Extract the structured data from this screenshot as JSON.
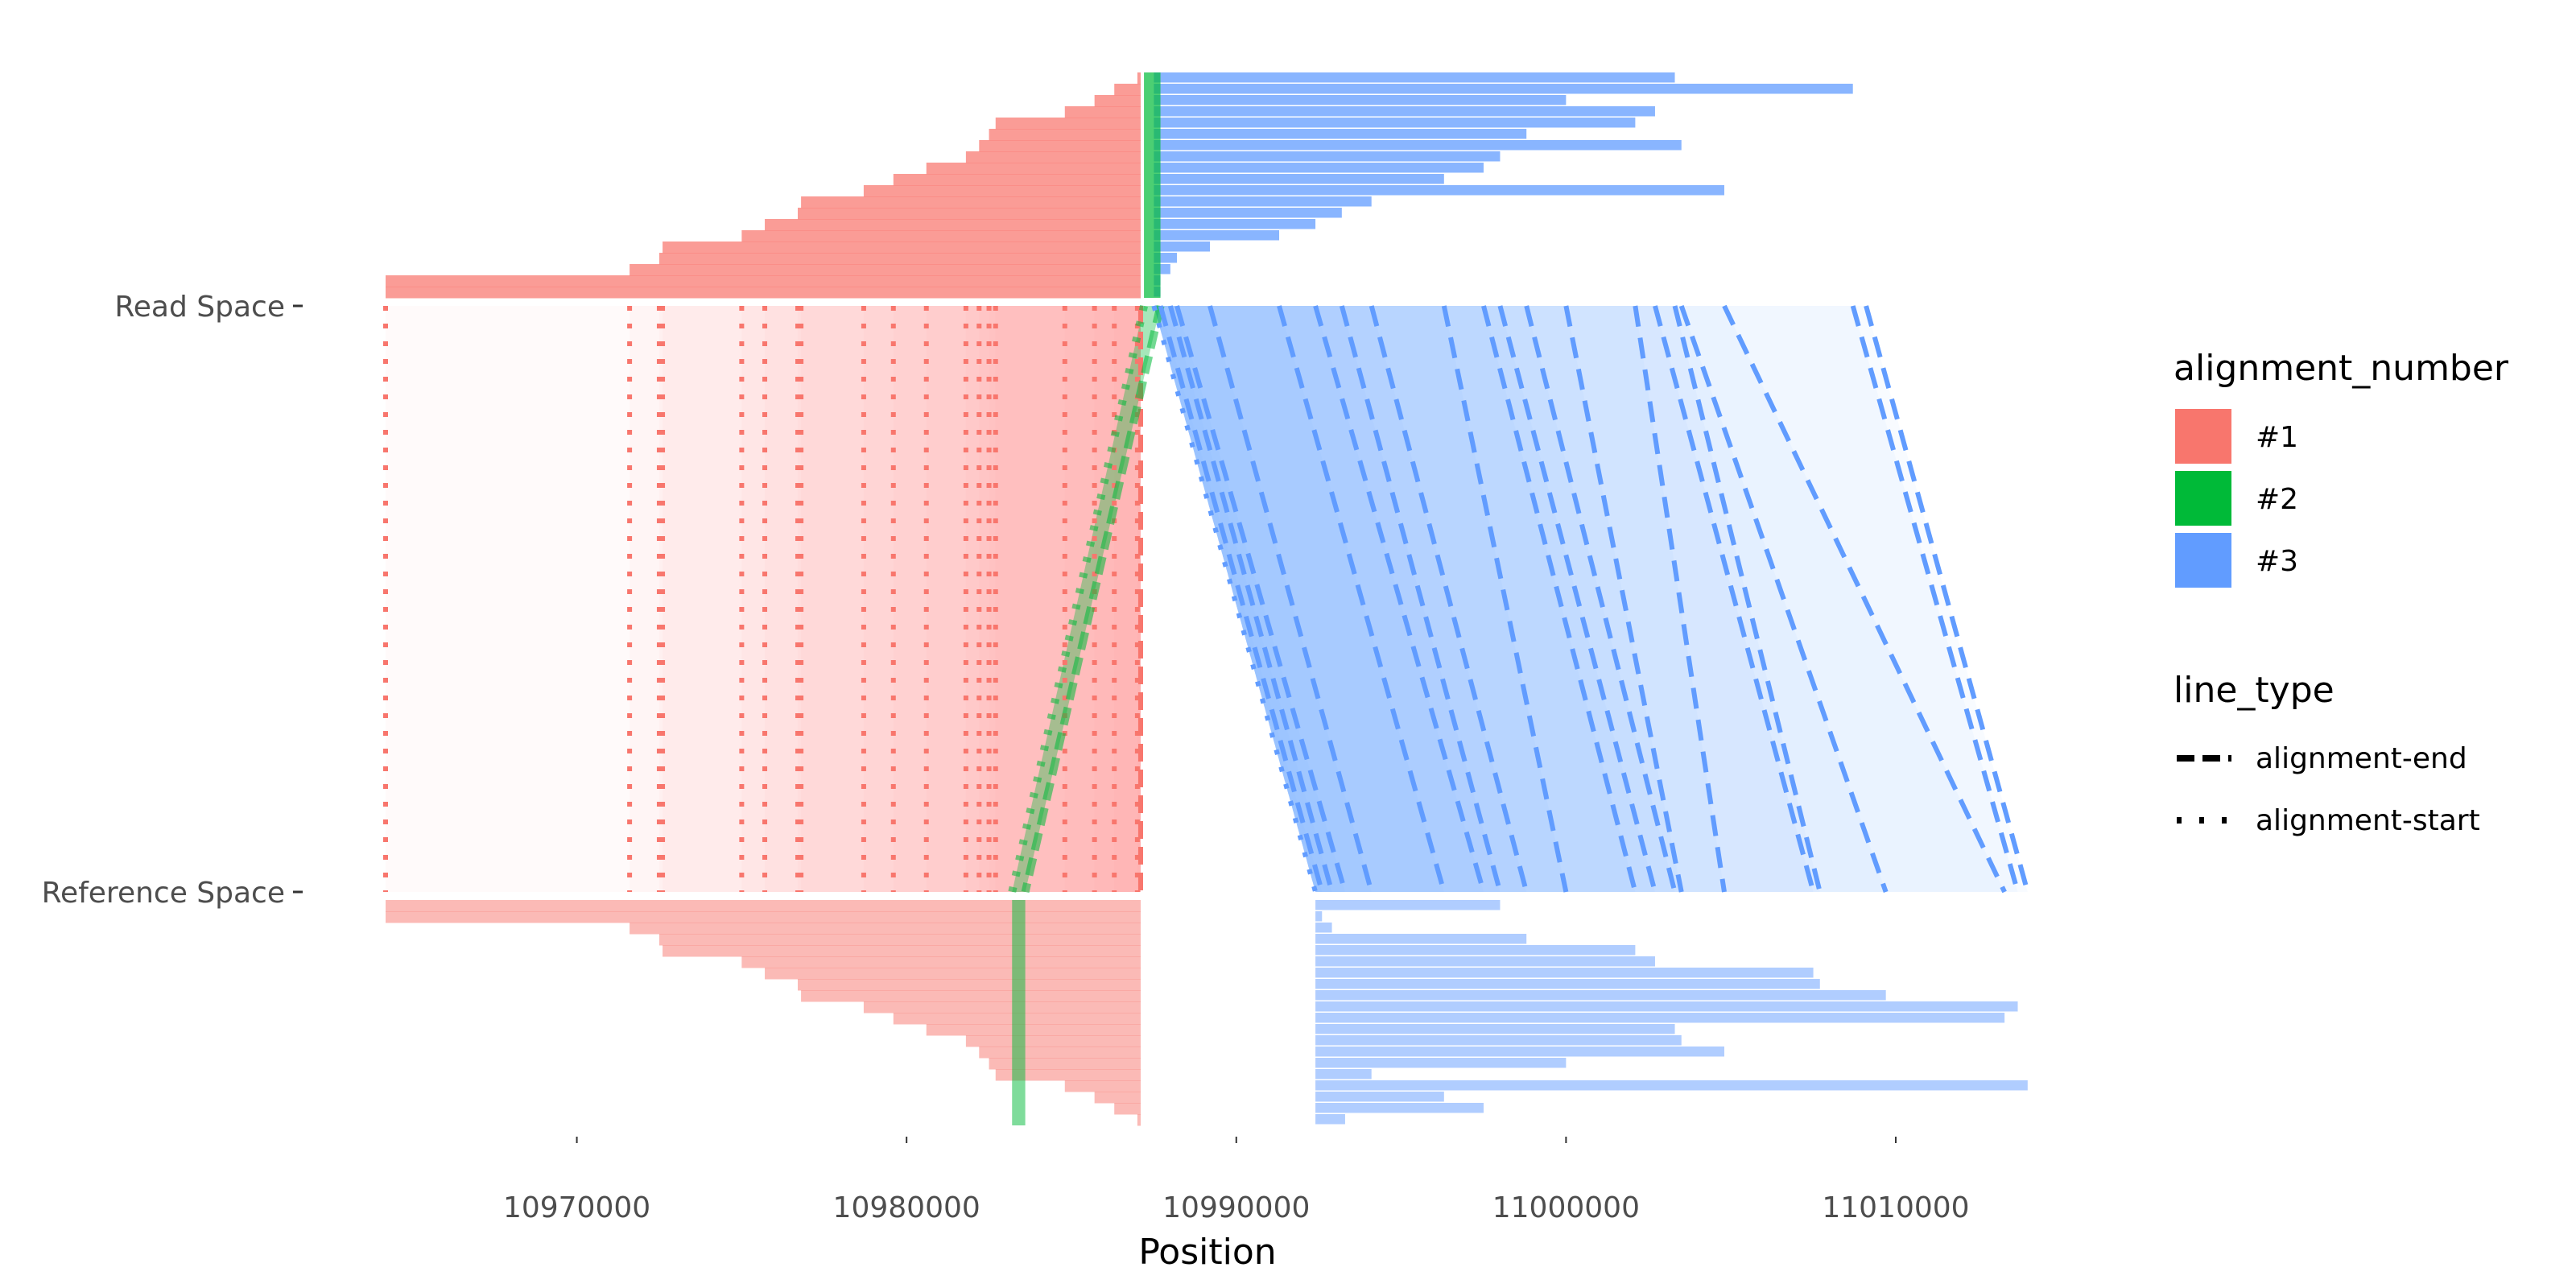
{
  "chart_data": {
    "type": "alignment-plot",
    "xlabel": "Position",
    "x_ticks": [
      10970000,
      10980000,
      10990000,
      11000000,
      11010000
    ],
    "x_tick_labels": [
      "10970000",
      "10980000",
      "10990000",
      "11000000",
      "11010000"
    ],
    "xlim": [
      10964200,
      11014200
    ],
    "y_tick_labels": [
      "Read Space",
      "Reference Space"
    ],
    "legend": {
      "fill_title": "alignment_number",
      "fill_entries": [
        {
          "label": "#1",
          "color": "#F8766D"
        },
        {
          "label": "#2",
          "color": "#00BA38"
        },
        {
          "label": "#3",
          "color": "#619CFF"
        }
      ],
      "line_title": "line_type",
      "line_entries": [
        {
          "label": "alignment-end",
          "dash": "dashed"
        },
        {
          "label": "alignment-start",
          "dash": "dotted"
        }
      ]
    },
    "alignments": [
      {
        "name": "#1",
        "color": "#F8766D",
        "read": {
          "end": 10987100,
          "starts": [
            10964200,
            10971600,
            10972500,
            10972600,
            10975000,
            10975700,
            10976700,
            10976800,
            10978700,
            10979600,
            10980600,
            10981800,
            10982200,
            10982500,
            10982700,
            10984800,
            10985700,
            10986300,
            10987000
          ]
        },
        "reference": {
          "end": 10987100,
          "starts": [
            10964200,
            10971600,
            10972500,
            10972600,
            10975000,
            10975700,
            10976700,
            10976800,
            10978700,
            10979600,
            10980600,
            10981800,
            10982200,
            10982500,
            10982700,
            10984800,
            10985700,
            10986300,
            10987000
          ]
        }
      },
      {
        "name": "#2",
        "color": "#00BA38",
        "read": {
          "start": 10987200,
          "end": 10987700
        },
        "reference": {
          "start": 10983200,
          "end": 10983600
        }
      },
      {
        "name": "#3",
        "color": "#619CFF",
        "read": {
          "start": 10987500,
          "ends": [
            10987700,
            10988000,
            10988200,
            10989200,
            10991300,
            10992400,
            10993200,
            10994100,
            10996300,
            10997500,
            10998000,
            10998800,
            11000000,
            11002100,
            11002700,
            11003300,
            11003500,
            11004800,
            11008700,
            11009100
          ]
        },
        "reference": {
          "start": 10992400,
          "ends": [
            10992600,
            10992900,
            10993300,
            10994100,
            10996300,
            10997500,
            10998000,
            10998800,
            11000000,
            11002100,
            11002700,
            11003300,
            11003500,
            11004800,
            11007500,
            11007700,
            11009700,
            11013300,
            11013700,
            11014000
          ]
        }
      }
    ]
  }
}
